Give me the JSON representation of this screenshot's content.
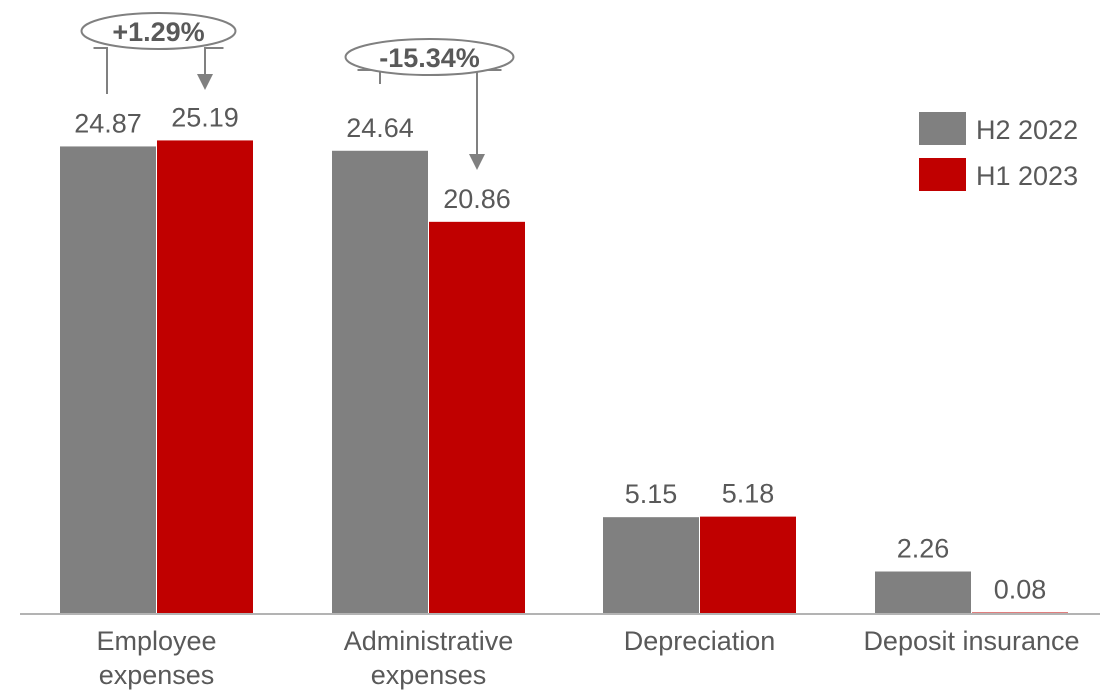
{
  "chart_data": {
    "type": "bar",
    "title": "",
    "xlabel": "",
    "ylabel": "",
    "ylim": [
      0,
      27
    ],
    "grid": false,
    "legend_position": "top-right",
    "categories": [
      [
        "Employee",
        "expenses"
      ],
      [
        "Administrative",
        "expenses"
      ],
      [
        "Depreciation"
      ],
      [
        "Deposit insurance"
      ]
    ],
    "series": [
      {
        "name": "H2 2022",
        "color": "#808080",
        "values": [
          24.87,
          24.64,
          5.15,
          2.26
        ],
        "labels": [
          "24.87",
          "24.64",
          "5.15",
          "2.26"
        ]
      },
      {
        "name": "H1 2023",
        "color": "#c00000",
        "values": [
          25.19,
          20.86,
          5.18,
          0.08
        ],
        "labels": [
          "25.19",
          "20.86",
          "5.18",
          "0.08"
        ]
      }
    ],
    "annotations": [
      {
        "text": "+1.29%",
        "category_index": 0
      },
      {
        "text": "-15.34%",
        "category_index": 1
      }
    ]
  }
}
